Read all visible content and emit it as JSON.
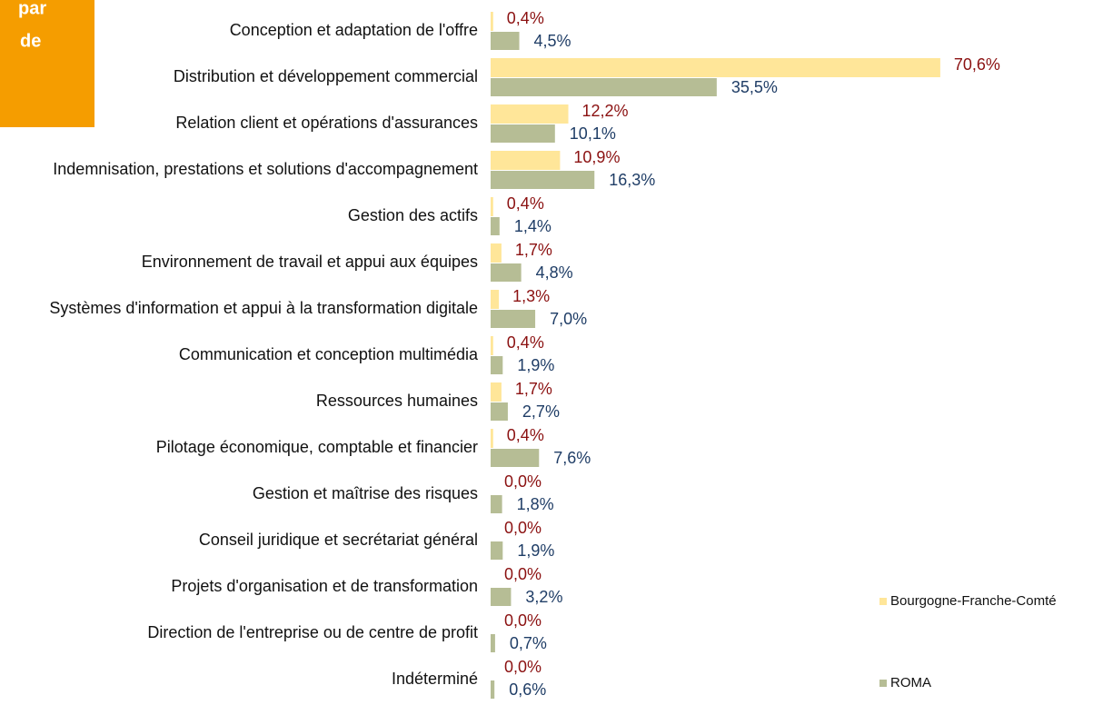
{
  "chart_data": {
    "type": "bar",
    "orientation": "horizontal",
    "annotations": [
      "par",
      "de"
    ],
    "legend": "right",
    "categories": [
      "Conception et adaptation de l'offre",
      "Distribution et développement commercial",
      "Relation client et opérations d'assurances",
      "Indemnisation, prestations et solutions d'accompagnement",
      "Gestion des actifs",
      "Environnement de travail et appui aux équipes",
      "Systèmes d'information et appui à la transformation digitale",
      "Communication et conception multimédia",
      "Ressources humaines",
      "Pilotage économique, comptable et financier",
      "Gestion et maîtrise des risques",
      "Conseil juridique et secrétariat général",
      "Projets d'organisation et de transformation",
      "Direction de l'entreprise ou de centre de profit",
      "Indéterminé"
    ],
    "series": [
      {
        "name": "Bourgogne-Franche-Comté",
        "color": "#ffe699",
        "label_color": "#8b1111",
        "values": [
          0.4,
          70.6,
          12.2,
          10.9,
          0.4,
          1.7,
          1.3,
          0.4,
          1.7,
          0.4,
          0.0,
          0.0,
          0.0,
          0.0,
          0.0
        ],
        "value_labels": [
          "0,4%",
          "70,6%",
          "12,2%",
          "10,9%",
          "0,4%",
          "1,7%",
          "1,3%",
          "0,4%",
          "1,7%",
          "0,4%",
          "0,0%",
          "0,0%",
          "0,0%",
          "0,0%",
          "0,0%"
        ]
      },
      {
        "name": "ROMA",
        "color": "#b6bd95",
        "label_color": "#1f3d66",
        "values": [
          4.5,
          35.5,
          10.1,
          16.3,
          1.4,
          4.8,
          7.0,
          1.9,
          2.7,
          7.6,
          1.8,
          1.9,
          3.2,
          0.7,
          0.6
        ],
        "value_labels": [
          "4,5%",
          "35,5%",
          "10,1%",
          "16,3%",
          "1,4%",
          "4,8%",
          "7,0%",
          "1,9%",
          "2,7%",
          "7,6%",
          "1,8%",
          "1,9%",
          "3,2%",
          "0,7%",
          "0,6%"
        ]
      }
    ]
  }
}
